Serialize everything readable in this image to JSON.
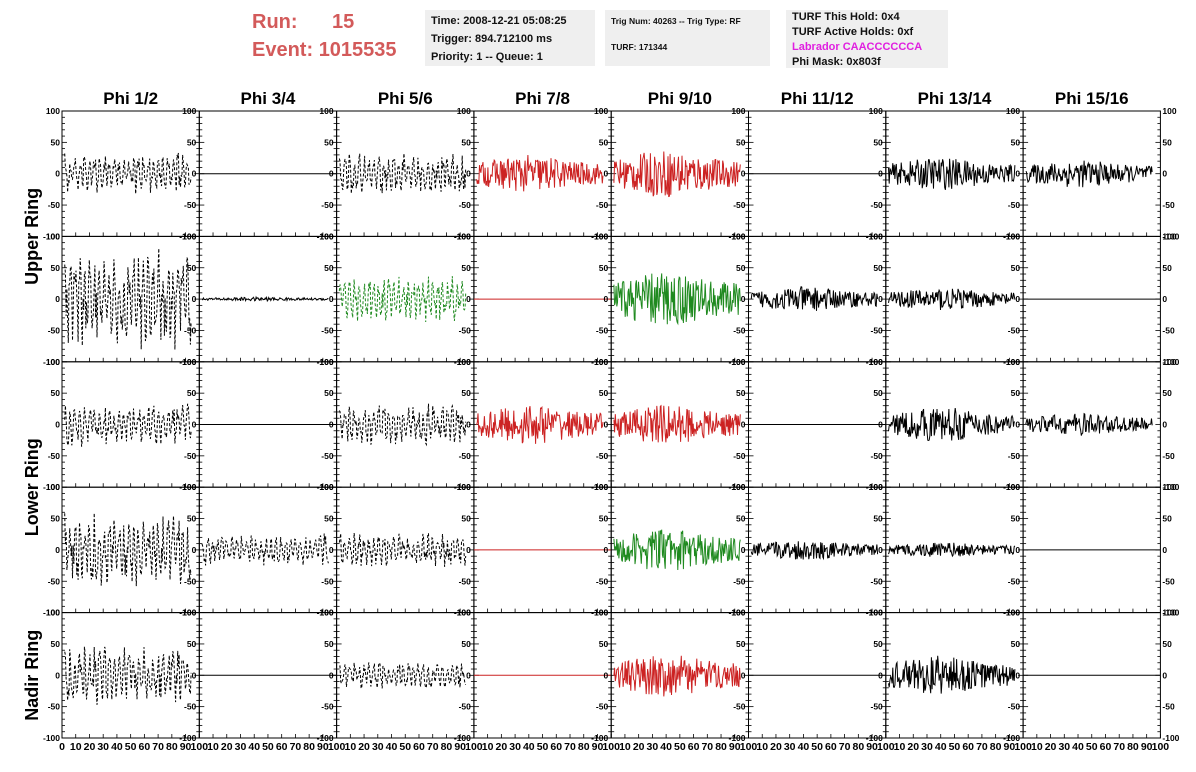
{
  "header": {
    "run_label": "Run:",
    "run_value": "15",
    "event_label": "Event:",
    "event_value": "1015535",
    "time_line": "Time: 2008-12-21 05:08:25",
    "trigger_line": "Trigger: 894.712100 ms",
    "priority_line": "Priority: 1 -- Queue: 1",
    "trig_num_line": "Trig Num: 40263 -- Trig Type: RF",
    "turf_line": "TURF: 171344",
    "turf_hold_line": "TURF This Hold: 0x4",
    "turf_active_line": "TURF Active Holds: 0xf",
    "labrador_line": "Labrador CAACCCCCCA",
    "phi_mask_line": "Phi Mask: 0x803f"
  },
  "chart_data": {
    "type": "line",
    "columns": [
      "Phi 1/2",
      "Phi 3/4",
      "Phi 5/6",
      "Phi 7/8",
      "Phi 9/10",
      "Phi 11/12",
      "Phi 13/14",
      "Phi 15/16"
    ],
    "ring_labels": [
      "Upper Ring",
      "Lower Ring",
      "Nadir Ring"
    ],
    "rows": 5,
    "xlim": [
      0,
      100
    ],
    "ylim": [
      -100,
      100
    ],
    "y_ticks": [
      -100,
      -50,
      0,
      50,
      100
    ],
    "x_tick_labels": [
      "0",
      "10",
      "20",
      "30",
      "40",
      "50",
      "60",
      "70",
      "80",
      "90",
      "100"
    ],
    "colors": {
      "black": "#000000",
      "red": "#cc2222",
      "green": "#1f8a1f"
    },
    "panels": [
      [
        {
          "color": "black",
          "style": "dashed",
          "amp": 28
        },
        {
          "color": "black",
          "style": "flat",
          "amp": 0
        },
        {
          "color": "black",
          "style": "dashed",
          "amp": 28
        },
        {
          "color": "red",
          "style": "solid",
          "amp": 30
        },
        {
          "color": "red",
          "style": "solid",
          "amp": 38
        },
        {
          "color": "black",
          "style": "flat",
          "amp": 0
        },
        {
          "color": "black",
          "style": "solid",
          "amp": 26
        },
        {
          "color": "black",
          "style": "solid",
          "amp": 22
        }
      ],
      [
        {
          "color": "black",
          "style": "dashed",
          "amp": 70
        },
        {
          "color": "black",
          "style": "solid",
          "amp": 3
        },
        {
          "color": "green",
          "style": "dashed",
          "amp": 32
        },
        {
          "color": "red",
          "style": "flat",
          "amp": 0
        },
        {
          "color": "green",
          "style": "solid",
          "amp": 45
        },
        {
          "color": "black",
          "style": "solid",
          "amp": 20
        },
        {
          "color": "black",
          "style": "solid",
          "amp": 18
        },
        {
          "color": "black",
          "style": "flat",
          "amp": 0
        }
      ],
      [
        {
          "color": "black",
          "style": "dashed",
          "amp": 30
        },
        {
          "color": "black",
          "style": "flat",
          "amp": 0
        },
        {
          "color": "black",
          "style": "dashed",
          "amp": 28
        },
        {
          "color": "red",
          "style": "solid",
          "amp": 32
        },
        {
          "color": "red",
          "style": "solid",
          "amp": 32
        },
        {
          "color": "black",
          "style": "flat",
          "amp": 0
        },
        {
          "color": "black",
          "style": "solid",
          "amp": 28
        },
        {
          "color": "black",
          "style": "solid",
          "amp": 18
        }
      ],
      [
        {
          "color": "black",
          "style": "dashed",
          "amp": 50
        },
        {
          "color": "black",
          "style": "dashed",
          "amp": 22
        },
        {
          "color": "black",
          "style": "dashed",
          "amp": 24
        },
        {
          "color": "red",
          "style": "flat",
          "amp": 0
        },
        {
          "color": "green",
          "style": "solid",
          "amp": 34
        },
        {
          "color": "black",
          "style": "solid",
          "amp": 16
        },
        {
          "color": "black",
          "style": "solid",
          "amp": 12
        },
        {
          "color": "black",
          "style": "flat",
          "amp": 0
        }
      ],
      [
        {
          "color": "black",
          "style": "dashed",
          "amp": 40
        },
        {
          "color": "black",
          "style": "flat",
          "amp": 0
        },
        {
          "color": "black",
          "style": "dashed",
          "amp": 18
        },
        {
          "color": "red",
          "style": "flat",
          "amp": 0
        },
        {
          "color": "red",
          "style": "solid",
          "amp": 34
        },
        {
          "color": "black",
          "style": "flat",
          "amp": 0
        },
        {
          "color": "black",
          "style": "solid",
          "amp": 32
        },
        {
          "color": "black",
          "style": "flat",
          "amp": 0
        }
      ]
    ]
  }
}
